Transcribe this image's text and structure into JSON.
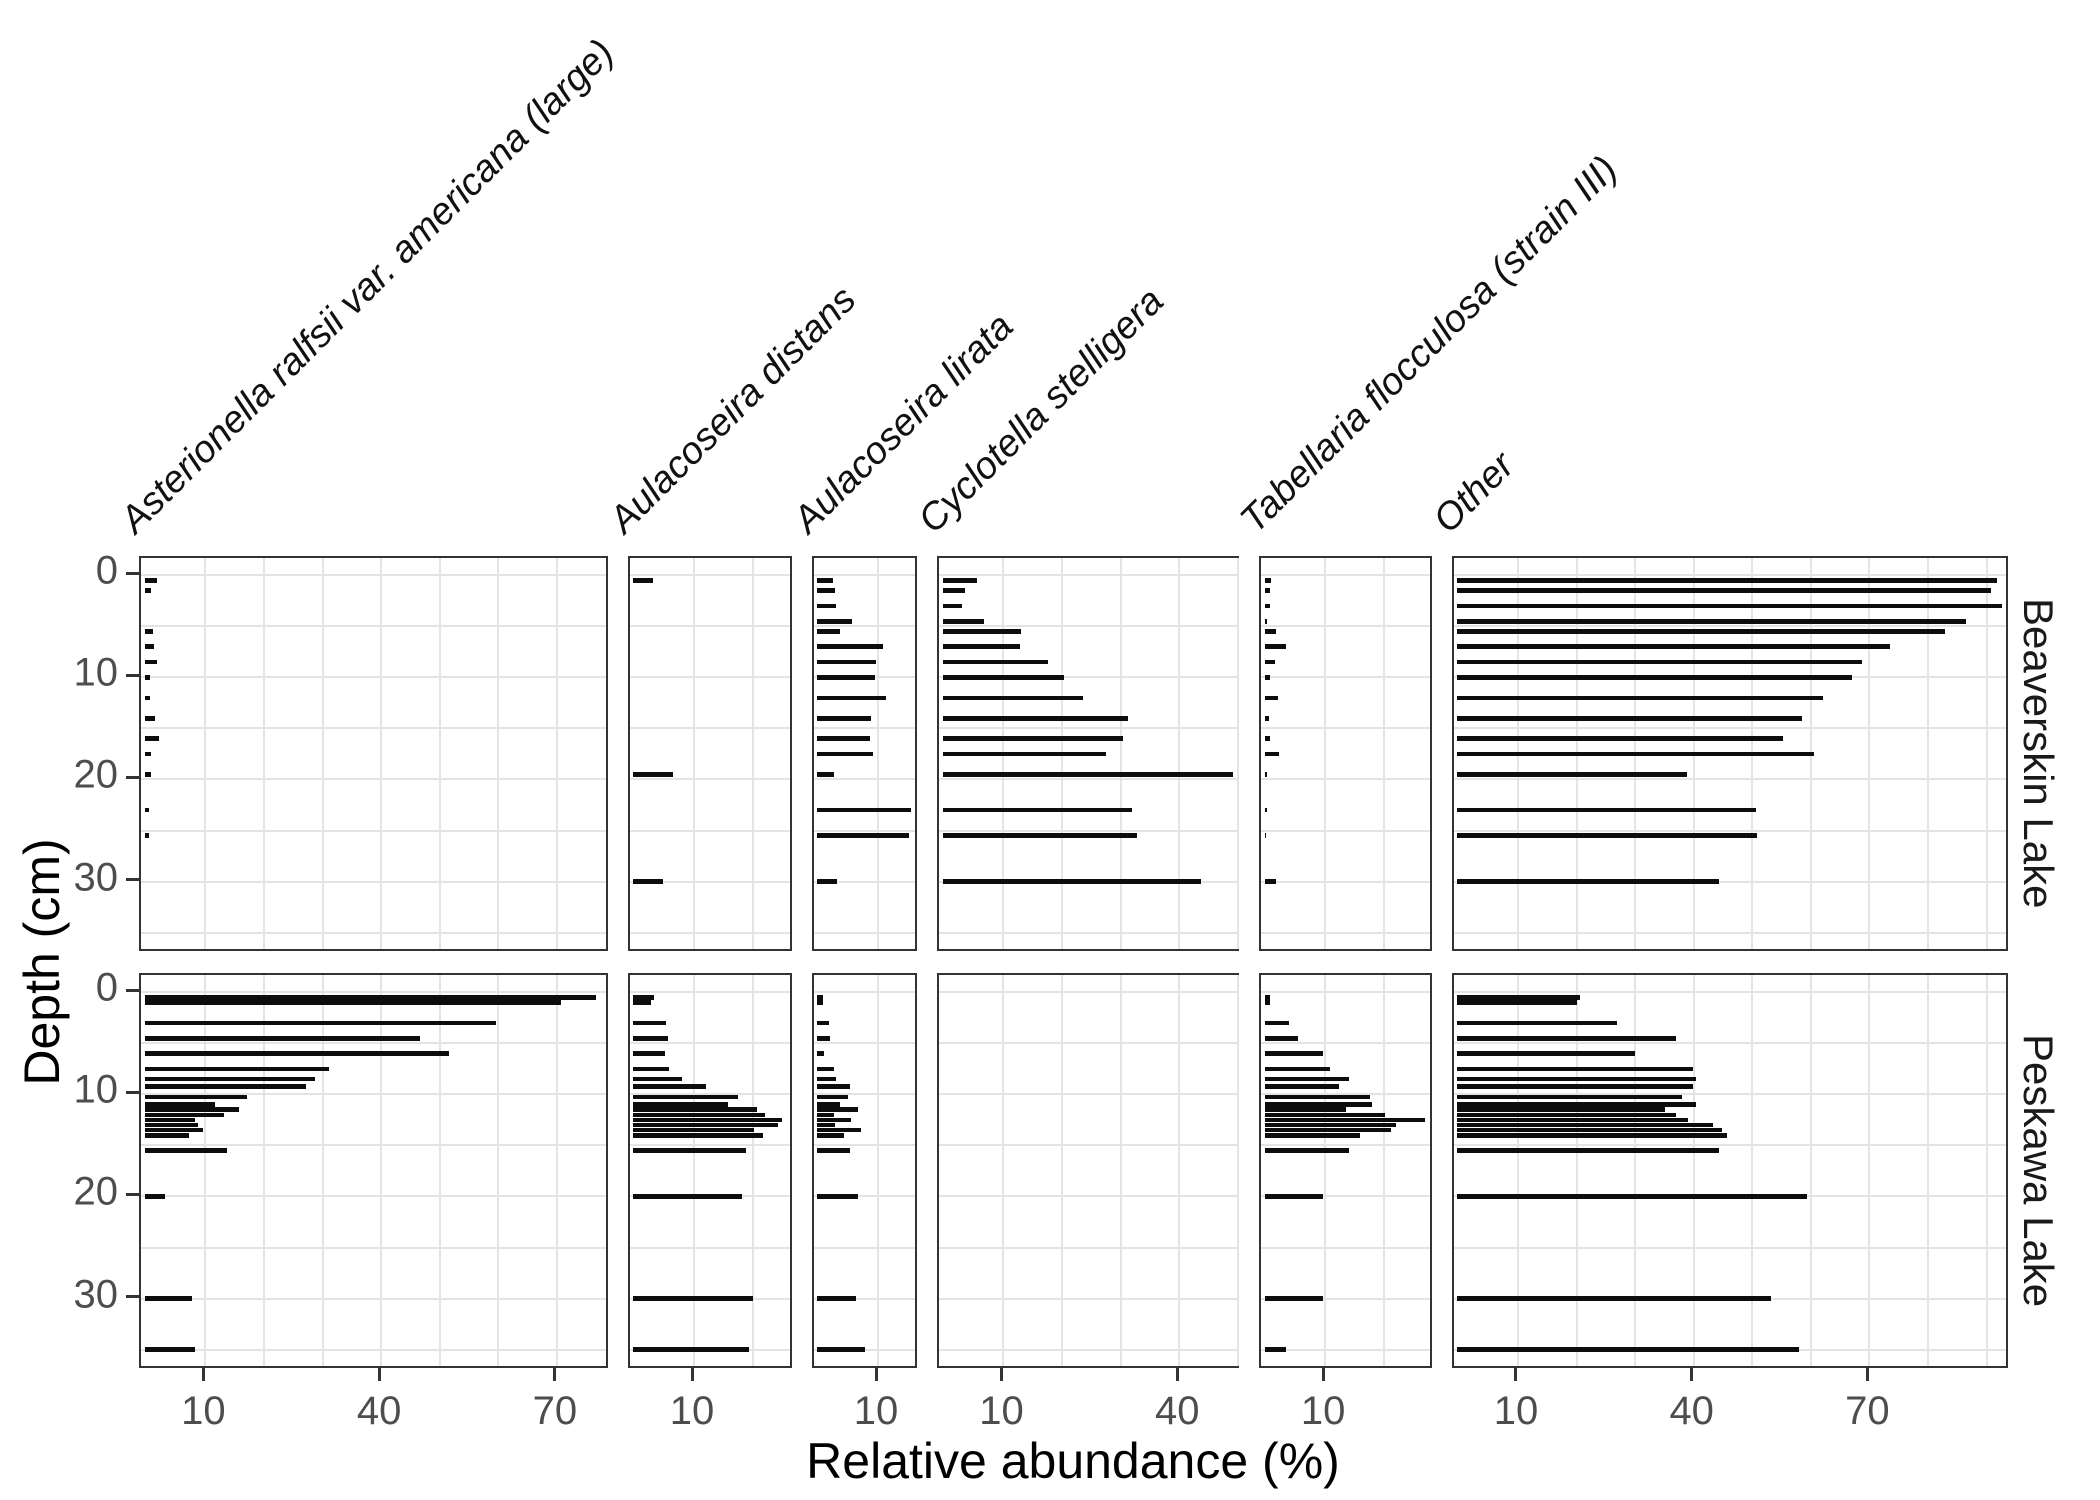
{
  "figure": {
    "x_axis_title": "Relative abundance (%)",
    "y_axis_title": "Depth (cm)",
    "bar_color": "#0d0d0d",
    "panel_border_color": "#333333",
    "gridline_color": "#e4e4e4",
    "tick_label_color": "#4d4d4d"
  },
  "chart_data": {
    "type": "bar",
    "orientation": "horizontal",
    "xlabel": "Relative abundance (%)",
    "ylabel": "Depth (cm)",
    "grid": "on",
    "legend": "none",
    "y_axis": {
      "ticks": [
        0,
        10,
        20,
        30
      ],
      "range": [
        -1.7,
        37
      ],
      "direction": "reversed-depth"
    },
    "columns": [
      {
        "id": "asterionella",
        "label": "Asterionella ralfsii var. americana (large)",
        "italic": true,
        "xmax": 79,
        "x_ticks": [
          10,
          40,
          70
        ]
      },
      {
        "id": "distans",
        "label": "Aulacoseira distans",
        "italic": true,
        "xmax": 27,
        "x_ticks": [
          10
        ]
      },
      {
        "id": "lirata",
        "label": "Aulacoseira lirata",
        "italic": true,
        "xmax": 17,
        "x_ticks": [
          10
        ]
      },
      {
        "id": "cyclotella",
        "label": "Cyclotella stelligera",
        "italic": true,
        "xmax": 50.5,
        "x_ticks": [
          10,
          40
        ]
      },
      {
        "id": "tabellaria",
        "label": "Tabellaria flocculosa (strain III)",
        "italic": true,
        "xmax": 28.5,
        "x_ticks": [
          10
        ]
      },
      {
        "id": "other",
        "label": "Other",
        "italic": true,
        "xmax": 94,
        "x_ticks": [
          10,
          40,
          70
        ]
      }
    ],
    "rows": [
      {
        "label": "Beaverskin Lake",
        "depths_cm": [
          0.5,
          1.5,
          3,
          4.5,
          5.5,
          7,
          8.5,
          10,
          12,
          14,
          16,
          17.5,
          19.5,
          23,
          25.5,
          30
        ],
        "values": {
          "asterionella": [
            2.0,
            1.0,
            0,
            0,
            1.4,
            1.5,
            2.0,
            0.8,
            0.8,
            1.7,
            2.4,
            1.0,
            1.0,
            0.7,
            0.7,
            0
          ],
          "distans": [
            3.3,
            0,
            0,
            0,
            0,
            0,
            0,
            0,
            0,
            0,
            0,
            0,
            6.8,
            0,
            0,
            5.1
          ],
          "lirata": [
            2.6,
            3.0,
            3.2,
            5.9,
            3.9,
            11.2,
            10.0,
            9.8,
            11.7,
            9.1,
            8.9,
            9.4,
            2.8,
            16.0,
            15.6,
            3.3
          ],
          "cyclotella": [
            5.8,
            3.8,
            3.3,
            7.1,
            13.4,
            13.2,
            17.9,
            20.6,
            24.0,
            31.6,
            30.8,
            27.8,
            49.6,
            32.2,
            33.1,
            44.0
          ],
          "tabellaria": [
            1.1,
            0.9,
            0.9,
            0.5,
            2.0,
            3.7,
            1.7,
            1.0,
            2.3,
            0.7,
            1.0,
            2.5,
            0.5,
            0.5,
            0.3,
            2.0
          ],
          "other": [
            92.2,
            91.1,
            92.9,
            86.9,
            83.2,
            73.8,
            69.0,
            67.4,
            62.4,
            58.9,
            55.6,
            60.9,
            39.2,
            51.0,
            51.2,
            44.7
          ]
        }
      },
      {
        "label": "Peskawa Lake",
        "depths_cm": [
          0.5,
          1,
          3,
          4.5,
          6,
          7.5,
          8.5,
          9.25,
          10.25,
          11,
          11.5,
          12,
          12.5,
          13,
          13.5,
          14,
          15.5,
          20,
          30,
          35
        ],
        "values": {
          "asterionella": [
            77.0,
            71.0,
            60.0,
            47.0,
            52.0,
            31.5,
            29.0,
            27.5,
            17.5,
            12.0,
            16.0,
            13.5,
            8.5,
            9.0,
            10.0,
            7.5,
            14.0,
            3.5,
            8.0,
            8.5
          ],
          "distans": [
            3.5,
            3.0,
            5.6,
            5.9,
            5.4,
            6.0,
            8.3,
            12.4,
            17.8,
            16.1,
            21.1,
            22.5,
            25.4,
            24.6,
            20.6,
            22.1,
            19.2,
            18.5,
            20.4,
            19.7
          ],
          "lirata": [
            1.0,
            1.0,
            2.0,
            2.1,
            1.2,
            2.8,
            3.1,
            5.5,
            5.3,
            3.8,
            6.9,
            2.8,
            5.7,
            3.0,
            7.5,
            4.6,
            5.6,
            6.9,
            6.5,
            8.1
          ],
          "cyclotella": [
            0,
            0,
            0,
            0,
            0,
            0,
            0,
            0,
            0,
            0,
            0,
            0,
            0,
            0,
            0,
            0,
            0,
            0,
            0,
            0
          ],
          "tabellaria": [
            1.0,
            1.0,
            4.2,
            5.7,
            10.0,
            11.1,
            14.4,
            12.7,
            18.0,
            18.4,
            13.9,
            20.5,
            27.4,
            22.4,
            21.6,
            16.3,
            14.5,
            10.0,
            10.0,
            3.7
          ],
          "other": [
            21.0,
            20.5,
            27.3,
            37.4,
            30.3,
            40.3,
            40.7,
            40.3,
            38.4,
            40.7,
            35.5,
            37.4,
            39.3,
            43.6,
            45.1,
            46.1,
            44.7,
            59.7,
            53.5,
            58.4
          ]
        }
      }
    ]
  }
}
